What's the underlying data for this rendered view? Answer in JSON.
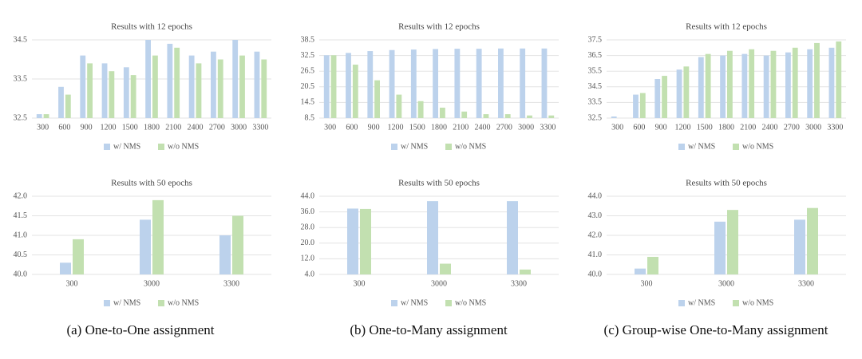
{
  "chart_data": [
    {
      "type": "bar",
      "title": "Results with 12 epochs",
      "categories": [
        "300",
        "600",
        "900",
        "1200",
        "1500",
        "1800",
        "2100",
        "2400",
        "2700",
        "3000",
        "3300"
      ],
      "series": [
        {
          "name": "w/ NMS",
          "color": "#bcd2ec",
          "values": [
            32.6,
            33.3,
            34.1,
            33.9,
            33.8,
            34.5,
            34.4,
            34.1,
            34.2,
            34.5,
            34.2
          ]
        },
        {
          "name": "w/o NMS",
          "color": "#c2e0b0",
          "values": [
            32.6,
            33.1,
            33.9,
            33.7,
            33.6,
            34.1,
            34.3,
            33.9,
            34.0,
            34.1,
            34.0
          ]
        }
      ],
      "ylim": [
        32.5,
        34.5
      ],
      "yticks": [
        32.5,
        33.5,
        34.5
      ],
      "grid": true,
      "legend": "bottom"
    },
    {
      "type": "bar",
      "title": "Results with 12 epochs",
      "categories": [
        "300",
        "600",
        "900",
        "1200",
        "1500",
        "1800",
        "2100",
        "2400",
        "2700",
        "3000",
        "3300"
      ],
      "series": [
        {
          "name": "w/ NMS",
          "color": "#bcd2ec",
          "values": [
            32.6,
            33.5,
            34.2,
            34.6,
            34.8,
            35.0,
            35.1,
            35.1,
            35.2,
            35.2,
            35.2
          ]
        },
        {
          "name": "w/o NMS",
          "color": "#c2e0b0",
          "values": [
            32.6,
            29,
            23,
            17.5,
            15,
            12.5,
            11,
            10,
            10,
            9.5,
            9.5
          ]
        }
      ],
      "ylim": [
        8.5,
        38.5
      ],
      "yticks": [
        8.5,
        14.5,
        20.5,
        26.5,
        32.5,
        38.5
      ],
      "grid": true,
      "legend": "bottom"
    },
    {
      "type": "bar",
      "title": "Results with 12 epochs",
      "categories": [
        "300",
        "600",
        "900",
        "1200",
        "1500",
        "1800",
        "2100",
        "2400",
        "2700",
        "3000",
        "3300"
      ],
      "series": [
        {
          "name": "w/ NMS",
          "color": "#bcd2ec",
          "values": [
            32.6,
            34.0,
            35.0,
            35.6,
            36.4,
            36.5,
            36.6,
            36.5,
            36.7,
            36.9,
            37.0
          ]
        },
        {
          "name": "w/o NMS",
          "color": "#c2e0b0",
          "values": [
            32.5,
            34.1,
            35.2,
            35.8,
            36.6,
            36.8,
            36.9,
            36.8,
            37.0,
            37.3,
            37.4
          ]
        }
      ],
      "ylim": [
        32.5,
        37.5
      ],
      "yticks": [
        32.5,
        33.5,
        34.5,
        35.5,
        36.5,
        37.5
      ],
      "grid": true,
      "legend": "bottom"
    },
    {
      "type": "bar",
      "title": "Results with 50 epochs",
      "categories": [
        "300",
        "3000",
        "3300"
      ],
      "series": [
        {
          "name": "w/ NMS",
          "color": "#bcd2ec",
          "values": [
            40.3,
            41.4,
            41.0
          ]
        },
        {
          "name": "w/o NMS",
          "color": "#c2e0b0",
          "values": [
            40.9,
            41.9,
            41.5
          ]
        }
      ],
      "ylim": [
        40,
        42
      ],
      "yticks": [
        {
          "value": 40,
          "label": "40.0"
        },
        40.5,
        {
          "value": 41,
          "label": "41.0"
        },
        41.5,
        {
          "value": 42,
          "label": "42.0"
        }
      ],
      "grid": true,
      "legend": "bottom"
    },
    {
      "type": "bar",
      "title": "Results with 50 epochs",
      "categories": [
        "300",
        "3000",
        "3300"
      ],
      "series": [
        {
          "name": "w/ NMS",
          "color": "#bcd2ec",
          "values": [
            37.7,
            41.5,
            41.5
          ]
        },
        {
          "name": "w/o NMS",
          "color": "#c2e0b0",
          "values": [
            37.5,
            9.5,
            6.5
          ]
        }
      ],
      "ylim": [
        4,
        44
      ],
      "yticks": [
        {
          "value": 4,
          "label": "4.0"
        },
        {
          "value": 12,
          "label": "12.0"
        },
        {
          "value": 20,
          "label": "20.0"
        },
        {
          "value": 28,
          "label": "28.0"
        },
        {
          "value": 36,
          "label": "36.0"
        },
        {
          "value": 44,
          "label": "44.0"
        }
      ],
      "grid": true,
      "legend": "bottom"
    },
    {
      "type": "bar",
      "title": "Results with 50 epochs",
      "categories": [
        "300",
        "3000",
        "3300"
      ],
      "series": [
        {
          "name": "w/ NMS",
          "color": "#bcd2ec",
          "values": [
            40.3,
            42.7,
            42.8
          ]
        },
        {
          "name": "w/o NMS",
          "color": "#c2e0b0",
          "values": [
            40.9,
            43.3,
            43.4
          ]
        }
      ],
      "ylim": [
        40,
        44
      ],
      "yticks": [
        {
          "value": 40,
          "label": "40.0"
        },
        {
          "value": 41,
          "label": "41.0"
        },
        {
          "value": 42,
          "label": "42.0"
        },
        {
          "value": 43,
          "label": "43.0"
        },
        {
          "value": 44,
          "label": "44.0"
        }
      ],
      "grid": true,
      "legend": "bottom"
    }
  ],
  "captions": [
    "(a) One-to-One assignment",
    "(b) One-to-Many assignment",
    "(c) Group-wise One-to-Many assignment"
  ]
}
